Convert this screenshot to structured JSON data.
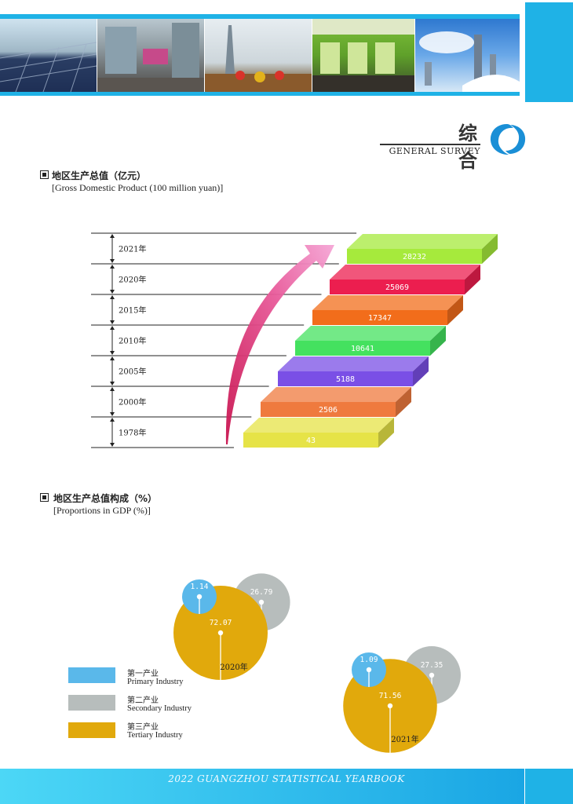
{
  "header": {
    "section_title_cn": "综 合",
    "section_title_en": "GENERAL  SURVEY"
  },
  "gdp_section": {
    "title_cn": "地区生产总值（亿元）",
    "title_en": "[Gross Domestic Product (100 million yuan)]"
  },
  "composition_section": {
    "title_cn": "地区生产总值构成（%）",
    "title_en": "[Proportions in GDP (%)]"
  },
  "chart_data": [
    {
      "type": "bar",
      "categories": [
        "1978年",
        "2000年",
        "2005年",
        "2010年",
        "2015年",
        "2020年",
        "2021年"
      ],
      "values": [
        43,
        2506,
        5188,
        10641,
        17347,
        25069,
        28232
      ],
      "value_labels": [
        "43",
        "2506",
        "5188",
        "10641",
        "17347",
        "25069",
        "28232"
      ],
      "colors": [
        "#e6e347",
        "#ef7a3e",
        "#7a4fe6",
        "#44e15f",
        "#f26d1b",
        "#ec1e4f",
        "#a6ea3c"
      ],
      "title": "地区生产总值（亿元）",
      "xlabel": "",
      "ylabel": ""
    },
    {
      "type": "pie",
      "title": "2020年",
      "categories": [
        "第一产业",
        "第二产业",
        "第三产业"
      ],
      "values": [
        1.14,
        26.79,
        72.07
      ],
      "value_labels": [
        "1.14",
        "26.79",
        "72.07"
      ],
      "colors": [
        "#5ab8ea",
        "#b7bdbc",
        "#e1a90c"
      ]
    },
    {
      "type": "pie",
      "title": "2021年",
      "categories": [
        "第一产业",
        "第二产业",
        "第三产业"
      ],
      "values": [
        1.09,
        27.35,
        71.56
      ],
      "value_labels": [
        "1.09",
        "27.35",
        "71.56"
      ],
      "colors": [
        "#5ab8ea",
        "#b7bdbc",
        "#e1a90c"
      ]
    }
  ],
  "legend": [
    {
      "cn": "第一产业",
      "en": "Primary Industry",
      "color": "#5ab8ea"
    },
    {
      "cn": "第二产业",
      "en": "Secondary Industry",
      "color": "#b7bdbc"
    },
    {
      "cn": "第三产业",
      "en": "Tertiary Industry",
      "color": "#e1a90c"
    }
  ],
  "footer": {
    "text": "2022 GUANGZHOU STATISTICAL YEARBOOK"
  }
}
